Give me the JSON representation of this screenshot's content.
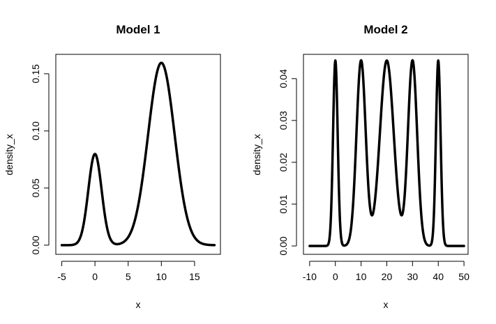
{
  "chart_data": [
    {
      "type": "line",
      "title": "Model 1",
      "xlabel": "x",
      "ylabel": "density_x",
      "xlim": [
        -5.9,
        18.9
      ],
      "ylim": [
        -0.008,
        0.167
      ],
      "xticks": [
        -5,
        0,
        5,
        10,
        15
      ],
      "yticks": [
        0.0,
        0.05,
        0.1,
        0.15
      ],
      "xtick_labels": [
        "-5",
        "0",
        "5",
        "10",
        "15"
      ],
      "ytick_labels": [
        "0.00",
        "0.05",
        "0.10",
        "0.15"
      ],
      "x_range": [
        -5,
        18
      ],
      "series": [
        {
          "line_color": "#000000",
          "mixture": [
            {
              "weight": 0.2,
              "mean": 0,
              "sd": 1
            },
            {
              "weight": 0.8,
              "mean": 10,
              "sd": 2
            }
          ]
        }
      ]
    },
    {
      "type": "line",
      "title": "Model 2",
      "xlabel": "x",
      "ylabel": "density_x",
      "xlim": [
        -12.4,
        51.6
      ],
      "ylim": [
        -0.002,
        0.0458
      ],
      "xticks": [
        -10,
        0,
        10,
        20,
        30,
        40,
        50
      ],
      "yticks": [
        0.0,
        0.01,
        0.02,
        0.03,
        0.04
      ],
      "xtick_labels": [
        "-10",
        "0",
        "10",
        "20",
        "30",
        "40",
        "50"
      ],
      "ytick_labels": [
        "0.00",
        "0.01",
        "0.02",
        "0.03",
        "0.04"
      ],
      "x_range": [
        -10,
        50
      ],
      "series": [
        {
          "line_color": "#000000",
          "mixture": [
            {
              "weight": 0.1,
              "mean": 0,
              "sd": 0.9
            },
            {
              "weight": 0.2,
              "mean": 10,
              "sd": 1.8
            },
            {
              "weight": 0.3,
              "mean": 20,
              "sd": 2.7
            },
            {
              "weight": 0.2,
              "mean": 30,
              "sd": 1.8
            },
            {
              "weight": 0.1,
              "mean": 40,
              "sd": 0.9
            }
          ]
        }
      ]
    }
  ]
}
